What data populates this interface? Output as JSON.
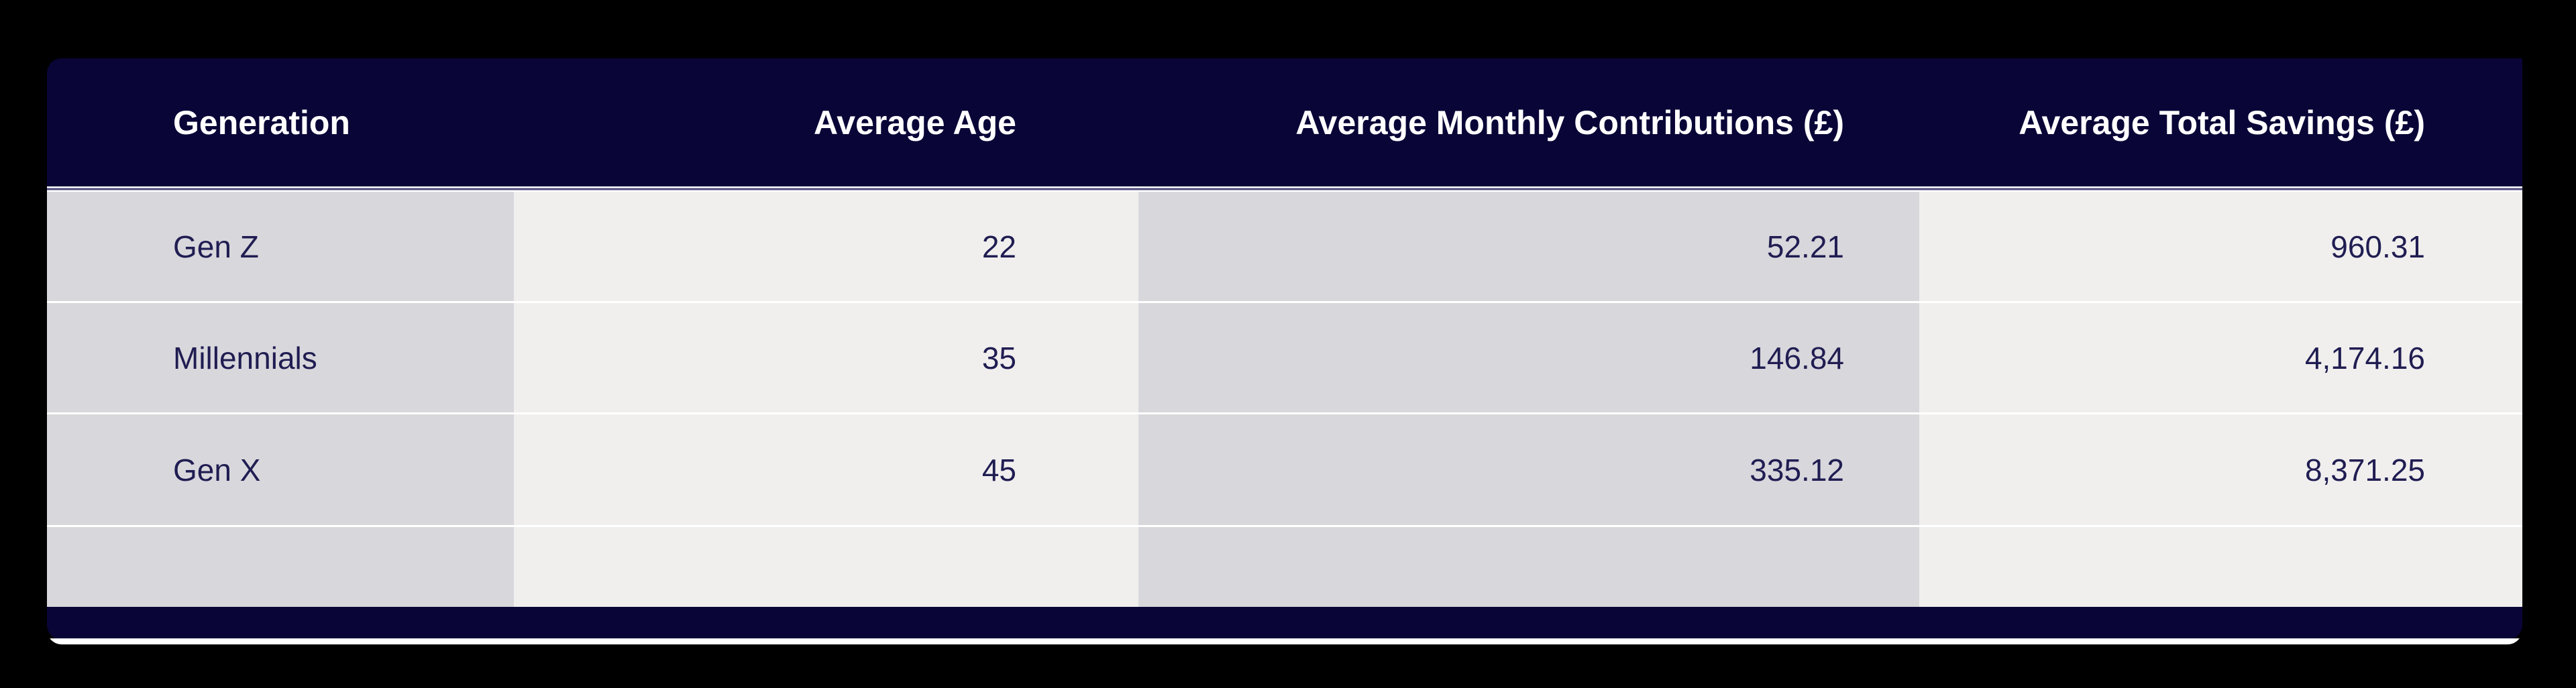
{
  "chart_data": {
    "type": "table",
    "columns": [
      {
        "label": "Generation",
        "align": "left"
      },
      {
        "label": "Average Age",
        "align": "right"
      },
      {
        "label": "Average Monthly Contributions (£)",
        "align": "right"
      },
      {
        "label": "Average Total Savings (£)",
        "align": "right"
      }
    ],
    "rows": [
      [
        "Gen Z",
        "22",
        "52.21",
        "960.31"
      ],
      [
        "Millennials",
        "35",
        "146.84",
        "4,174.16"
      ],
      [
        "Gen X",
        "45",
        "335.12",
        "8,371.25"
      ],
      [
        "",
        "",
        "",
        ""
      ]
    ],
    "numeric_rows": [
      {
        "generation": "Gen Z",
        "average_age": 22,
        "average_monthly_contributions_gbp": 52.21,
        "average_total_savings_gbp": 960.31
      },
      {
        "generation": "Millennials",
        "average_age": 35,
        "average_monthly_contributions_gbp": 146.84,
        "average_total_savings_gbp": 4174.16
      },
      {
        "generation": "Gen X",
        "average_age": 45,
        "average_monthly_contributions_gbp": 335.12,
        "average_total_savings_gbp": 8371.25
      }
    ],
    "title": "",
    "legend": "none",
    "grid": "row-separators-only"
  },
  "colors": {
    "page_background": "#000000",
    "header_background": "#090537",
    "header_text": "#ffffff",
    "divider_accent": "#4c4a7c",
    "column_shade_dark": "#d8d7dc",
    "column_shade_light": "#f0efee",
    "row_separator": "#ffffff",
    "body_text": "#201d52",
    "footer_bar": "#090537"
  }
}
